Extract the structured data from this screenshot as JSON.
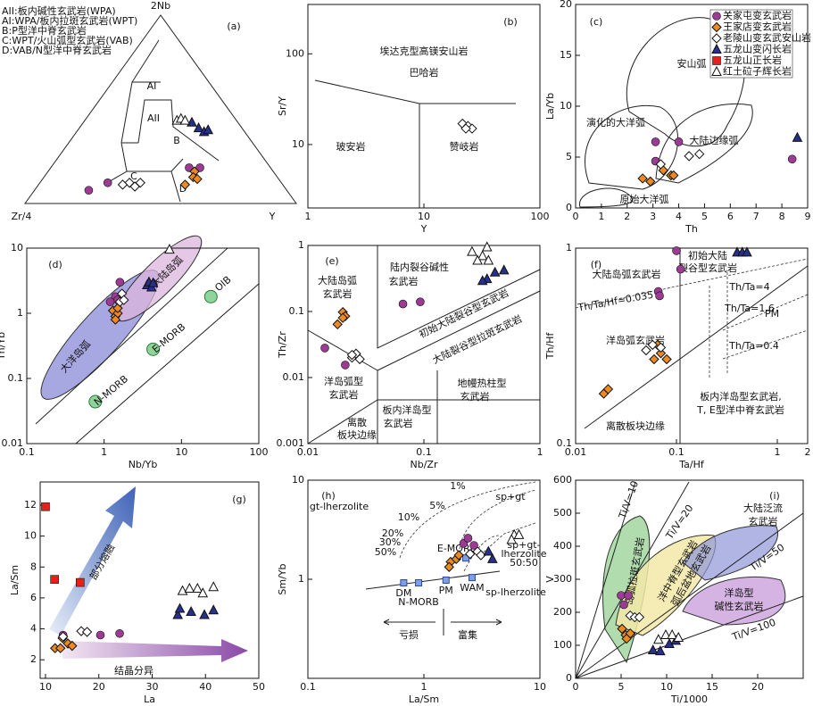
{
  "chart_data": [
    {
      "type": "ternary",
      "label": "(a)",
      "vertex_labels": [
        "2Nb",
        "Zr/4",
        "Y"
      ],
      "field_key": [
        "AII:板内碱性玄武岩(WPA)",
        "AI:WPA/板内拉斑玄武岩(WPT)",
        "B:P型洋中脊玄武岩",
        "C:WPT/火山弧型玄武岩(VAB)",
        "D:VAB/N型洋中脊玄武岩"
      ],
      "annotations": [
        "AI",
        "AII",
        "B",
        "C",
        "D"
      ],
      "series": [
        {
          "nb2": [
            7,
            11,
            19,
            19
          ],
          "zr4": [
            73,
            64,
            30,
            26
          ],
          "y": [
            20,
            25,
            51,
            55
          ]
        },
        {
          "nb2": [
            17,
            14,
            13,
            10
          ],
          "zr4": [
            29,
            31,
            30,
            36
          ],
          "y": [
            54,
            55,
            57,
            54
          ]
        },
        {
          "nb2": [
            11,
            9,
            11,
            10
          ],
          "zr4": [
            56,
            55,
            52,
            59
          ],
          "y": [
            33,
            36,
            37,
            31
          ]
        },
        {
          "nb2": [
            43,
            40,
            38,
            39
          ],
          "zr4": [
            17,
            16,
            15,
            13
          ],
          "y": [
            40,
            44,
            47,
            48
          ]
        },
        {
          "nb2": [],
          "zr4": [],
          "y": []
        },
        {
          "nb2": [
            44,
            45,
            44
          ],
          "zr4": [
            22,
            20,
            19
          ],
          "y": [
            34,
            35,
            37
          ]
        }
      ]
    },
    {
      "type": "scatter",
      "label": "(b)",
      "x_label": "Y",
      "y_label": "Sr/Y",
      "xlim": [
        1,
        100
      ],
      "ylim": [
        2,
        350
      ],
      "xlog": true,
      "ylog": true,
      "xticks": [
        1,
        10,
        100
      ],
      "yticks": [
        10,
        100
      ],
      "annotations": [
        "埃达克型高镁安山岩",
        "巴哈岩",
        "玻安岩",
        "赞岐岩"
      ],
      "series": [
        {
          "x": [],
          "values": []
        },
        {
          "x": [],
          "values": []
        },
        {
          "x": [
            21.5,
            24,
            26,
            23
          ],
          "values": [
            17,
            16,
            15,
            15
          ]
        },
        {
          "x": [],
          "values": []
        },
        {
          "x": [],
          "values": []
        },
        {
          "x": [],
          "values": []
        }
      ]
    },
    {
      "type": "scatter",
      "label": "(c)",
      "x_label": "Th",
      "y_label": "La/Yb",
      "xlim": [
        0,
        9
      ],
      "ylim": [
        0,
        20
      ],
      "xlog": false,
      "ylog": false,
      "xticks": [
        0,
        1,
        2,
        3,
        4,
        5,
        6,
        7,
        8,
        9
      ],
      "yticks": [
        0,
        5,
        10,
        15,
        20
      ],
      "annotations": [
        "安山弧",
        "演化的大洋弧",
        "大陆边缘弧",
        "原始大洋弧"
      ],
      "legend": [
        {
          "name": "关家屯变玄武岩",
          "color": "#9c3b94",
          "marker": "circle"
        },
        {
          "name": "王家店变玄武岩",
          "color": "#ec8a22",
          "marker": "diamond"
        },
        {
          "name": "老陵山变玄武安山岩",
          "color": "#ffffff",
          "marker": "diamond"
        },
        {
          "name": "五龙山变闪长岩",
          "color": "#27308a",
          "marker": "triangle"
        },
        {
          "name": "五龙山正长岩",
          "color": "#e3221d",
          "marker": "square"
        },
        {
          "name": "红土砬子辉长岩",
          "color": "#ffffff",
          "marker": "triangle"
        }
      ],
      "series": [
        {
          "x": [
            3.1,
            4.0,
            3.1,
            8.4
          ],
          "values": [
            6.5,
            6.5,
            4.6,
            4.8
          ]
        },
        {
          "x": [
            2.6,
            2.9,
            3.4,
            3.7,
            3.8
          ],
          "values": [
            2.9,
            2.6,
            3.7,
            3.2,
            3.2
          ]
        },
        {
          "x": [
            3.3,
            4.4,
            4.8
          ],
          "values": [
            4.3,
            5.1,
            5.3
          ]
        },
        {
          "x": [
            8.6
          ],
          "values": [
            6.9
          ]
        },
        {
          "x": [],
          "values": []
        },
        {
          "x": [],
          "values": []
        }
      ]
    },
    {
      "type": "scatter",
      "label": "(d)",
      "x_label": "Nb/Yb",
      "y_label": "Th/Yb",
      "xlim": [
        0.1,
        100
      ],
      "ylim": [
        0.01,
        10
      ],
      "xlog": true,
      "ylog": true,
      "xticks": [
        0.1,
        1,
        10,
        100
      ],
      "yticks": [
        0.01,
        0.1,
        1,
        10
      ],
      "annotations": [
        "大洋岛弧",
        "大陆岛弧"
      ],
      "references": {
        "names": [
          "N-MORB",
          "E-MORB",
          "OIB"
        ],
        "x": [
          0.77,
          4.3,
          24
        ],
        "values": [
          0.044,
          0.28,
          1.8
        ]
      },
      "series": [
        {
          "x": [
            1.6,
            1.4,
            1.5,
            1.2
          ],
          "values": [
            3.0,
            1.8,
            1.6,
            1.5
          ]
        },
        {
          "x": [
            1.3,
            1.4,
            1.5,
            1.4,
            1.5
          ],
          "values": [
            1.1,
            0.9,
            1.0,
            0.8,
            1.2
          ]
        },
        {
          "x": [
            1.7,
            1.6,
            1.8
          ],
          "values": [
            2.0,
            1.5,
            1.6
          ]
        },
        {
          "x": [
            3.6,
            4.1,
            3.8,
            4.3
          ],
          "values": [
            2.7,
            2.5,
            3.0,
            2.9
          ]
        },
        {
          "x": [],
          "values": []
        },
        {
          "x": [
            7
          ],
          "values": [
            9.5
          ]
        }
      ]
    },
    {
      "type": "scatter",
      "label": "(e)",
      "x_label": "Nb/Zr",
      "y_label": "Th/Zr",
      "xlim": [
        0.01,
        1
      ],
      "ylim": [
        0.001,
        1
      ],
      "xlog": true,
      "ylog": true,
      "xticks": [
        0.01,
        0.1,
        1
      ],
      "yticks": [
        0.001,
        0.01,
        0.1,
        1
      ],
      "annotations": [
        "大陆岛弧",
        "玄武岩",
        "陆内裂谷碱性",
        "玄武岩",
        "初始大陆裂谷型玄武岩",
        "大陆裂谷型拉斑玄武岩",
        "洋岛弧型",
        "玄武岩",
        "地幔热柱型",
        "玄武岩",
        "板内洋岛型",
        "玄武岩",
        "离散",
        "板块边缘"
      ],
      "series": [
        {
          "x": [
            0.014,
            0.021,
            0.066,
            0.093
          ],
          "values": [
            0.028,
            0.0155,
            0.13,
            0.14
          ]
        },
        {
          "x": [
            0.018,
            0.02,
            0.021,
            0.02
          ],
          "values": [
            0.064,
            0.098,
            0.085,
            0.08
          ]
        },
        {
          "x": [
            0.024,
            0.026,
            0.028,
            0.024
          ],
          "values": [
            0.02,
            0.023,
            0.019,
            0.022
          ]
        },
        {
          "x": [
            0.35,
            0.41,
            0.49,
            0.32
          ],
          "values": [
            0.31,
            0.39,
            0.42,
            0.29
          ]
        },
        {
          "x": [],
          "values": []
        },
        {
          "x": [
            0.26,
            0.32,
            0.36,
            0.29,
            0.35
          ],
          "values": [
            0.8,
            0.69,
            0.59,
            0.59,
            0.94
          ]
        }
      ]
    },
    {
      "type": "scatter",
      "label": "(f)",
      "x_label": "Ta/Hf",
      "y_label": "Th/Hf",
      "xlim": [
        0.01,
        2
      ],
      "ylim": [
        0.1,
        1
      ],
      "xlog": true,
      "ylog": true,
      "xticks": [
        0.01,
        0.1,
        1,
        2
      ],
      "yticks": [
        0.1,
        1
      ],
      "annotations": [
        "大陆岛弧玄武岩",
        "初始大陆",
        "裂谷型玄武岩",
        "Th/Ta/Hf=0.035",
        "Th/Ta=4",
        "Th/Ta=1.6",
        "Th/Ta=0.4",
        "PM",
        "洋岛弧玄武岩",
        "板内洋岛型玄武岩,",
        "T, E型洋中脊玄武岩",
        "离散板块边缘"
      ],
      "series": [
        {
          "x": [
            0.1,
            0.11,
            0.066,
            0.068
          ],
          "values": [
            0.97,
            0.78,
            0.6,
            0.57
          ]
        },
        {
          "x": [
            0.019,
            0.021,
            0.06,
            0.065,
            0.07,
            0.08
          ],
          "values": [
            0.18,
            0.19,
            0.27,
            0.32,
            0.29,
            0.27
          ]
        },
        {
          "x": [
            0.05,
            0.058,
            0.07
          ],
          "values": [
            0.3,
            0.32,
            0.31
          ]
        },
        {
          "x": [
            0.4,
            0.45,
            0.5
          ],
          "values": [
            0.95,
            0.95,
            0.95
          ]
        },
        {
          "x": [],
          "values": []
        },
        {
          "x": [],
          "values": []
        }
      ]
    },
    {
      "type": "scatter",
      "label": "(g)",
      "x_label": "La",
      "y_label": "La/Sm",
      "xlim": [
        9,
        50
      ],
      "ylim": [
        0.8,
        13.5
      ],
      "xlog": false,
      "ylog": false,
      "xticks": [
        10,
        20,
        30,
        40,
        50
      ],
      "yticks": [
        2,
        4,
        6,
        8,
        10,
        12
      ],
      "annotations": [
        "部分熔融",
        "结晶分异"
      ],
      "series": [
        {
          "x": [
            13.3,
            20.3,
            23.9
          ],
          "values": [
            3.6,
            3.6,
            3.7
          ]
        },
        {
          "x": [
            11.8,
            12.8,
            14.2,
            15,
            13.2
          ],
          "values": [
            2.75,
            2.75,
            3.05,
            2.9,
            3.4
          ]
        },
        {
          "x": [
            13.3,
            16.7,
            17.8
          ],
          "values": [
            3.5,
            3.85,
            3.8
          ]
        },
        {
          "x": [
            34.8,
            37.3,
            39.8,
            41.5,
            35.2
          ],
          "values": [
            4.9,
            5.1,
            4.9,
            5.2,
            5.3
          ]
        },
        {
          "x": [
            10,
            11.7,
            16.5
          ],
          "values": [
            11.9,
            7.2,
            7.0
          ]
        },
        {
          "x": [
            35.7,
            37,
            38.5,
            41.5,
            39.5
          ],
          "values": [
            6.45,
            6.6,
            6.6,
            6.7,
            6.3
          ]
        }
      ]
    },
    {
      "type": "scatter",
      "label": "(h)",
      "x_label": "La/Sm",
      "y_label": "Sm/Yb",
      "xlim": [
        0.1,
        10
      ],
      "ylim": [
        0.1,
        10
      ],
      "xlog": true,
      "ylog": true,
      "xticks": [
        0.1,
        1,
        10
      ],
      "yticks": [
        1,
        10
      ],
      "annotations": [
        "gt-lherzolite",
        "sp+gt",
        "sp-lherzolite",
        "sp+gt-",
        "lherzolite",
        "50:50",
        "亏损",
        "富集",
        "1%",
        "5%",
        "10%",
        "20%",
        "30%",
        "50%"
      ],
      "references": {
        "names": [
          "DM",
          "N-MORB",
          "PM",
          "WAM",
          "E-MORB"
        ],
        "x": [
          0.67,
          0.9,
          1.55,
          2.6,
          2.3
        ],
        "values": [
          0.92,
          0.92,
          0.98,
          1.04,
          1.64
        ]
      },
      "series": [
        {
          "x": [
            2.2,
            2.4,
            2.7
          ],
          "values": [
            2.3,
            2.6,
            2.2
          ]
        },
        {
          "x": [
            1.7,
            1.9,
            2.0,
            1.65
          ],
          "values": [
            1.5,
            1.6,
            1.75,
            1.33
          ]
        },
        {
          "x": [
            2.5,
            2.9,
            3.1
          ],
          "values": [
            1.8,
            1.9,
            1.75
          ]
        },
        {
          "x": [
            3.9,
            3.6
          ],
          "values": [
            1.6,
            1.9
          ]
        },
        {
          "x": [],
          "values": []
        },
        {
          "x": [
            6,
            6.6,
            5.7
          ],
          "values": [
            2.8,
            2.8,
            2.5
          ]
        }
      ]
    },
    {
      "type": "scatter",
      "label": "(i)",
      "x_label": "Ti/1000",
      "y_label": "V",
      "xlim": [
        0,
        25
      ],
      "ylim": [
        0,
        600
      ],
      "xlog": false,
      "ylog": false,
      "xticks": [
        0,
        5,
        10,
        15,
        20
      ],
      "yticks": [
        0,
        100,
        200,
        300,
        400,
        500,
        600
      ],
      "annotations": [
        "Ti/V=10",
        "Ti/V=20",
        "Ti/V=50",
        "Ti/V=100",
        "大陆泛流",
        "玄武岩",
        "洋岛型",
        "碱性玄武岩",
        "岛弧拉斑玄武岩",
        "洋中脊型玄武岩",
        "弧后盆地玄武岩"
      ],
      "series": [
        {
          "x": [
            5.0,
            5.8,
            5.3
          ],
          "values": [
            251,
            251,
            223
          ]
        },
        {
          "x": [
            5.1,
            5.5,
            6.0,
            5.6
          ],
          "values": [
            150,
            131,
            136,
            120
          ]
        },
        {
          "x": [
            6.0,
            6.5,
            7.0
          ],
          "values": [
            190,
            185,
            185
          ]
        },
        {
          "x": [
            8.5,
            9.3,
            10.3,
            11.0
          ],
          "values": [
            85,
            82,
            104,
            114
          ]
        },
        {
          "x": [],
          "values": []
        },
        {
          "x": [
            9.1,
            9.9,
            10.6,
            11.3
          ],
          "values": [
            117,
            131,
            131,
            123
          ]
        }
      ]
    }
  ]
}
